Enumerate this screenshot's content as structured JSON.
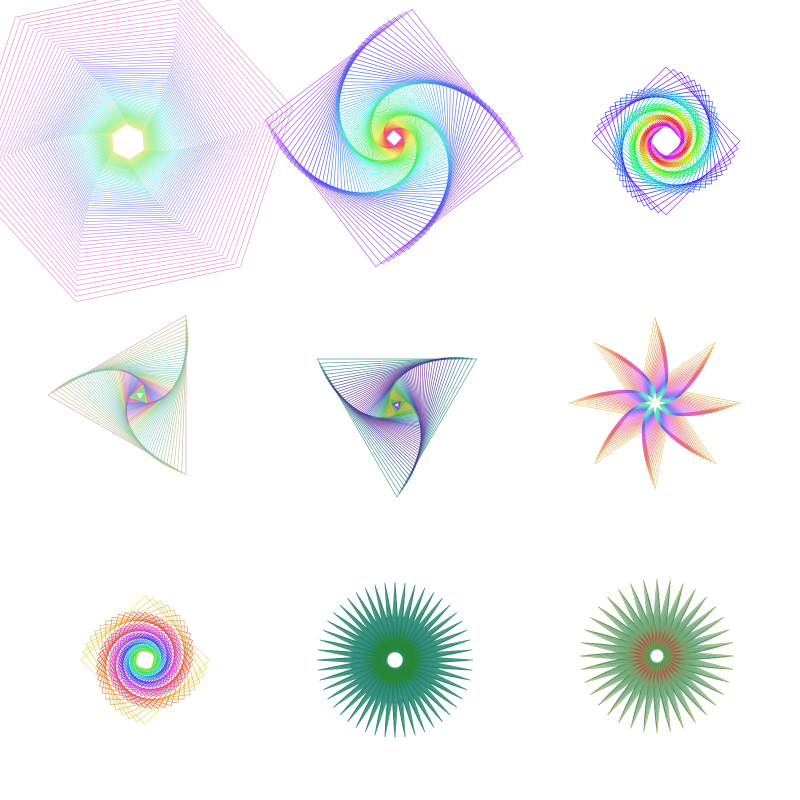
{
  "canvas": {
    "background": "#ffffff"
  },
  "figures": [
    {
      "id": "hexagon-swirl",
      "sides": 6,
      "layers": 70,
      "twist_deg": 0.55,
      "shrink": 0.968,
      "palette": "pastel-rainbow",
      "start_angle_deg": -12
    },
    {
      "id": "square-vortex",
      "sides": 4,
      "layers": 110,
      "twist_deg": -2.6,
      "shrink": 0.975,
      "palette": "rainbow-purple",
      "start_angle_deg": 8
    },
    {
      "id": "rainbow-spirograph",
      "sides": 4,
      "layers": 60,
      "twist_deg": 6.2,
      "shrink": 0.976,
      "palette": "rainbow-violet-outer",
      "start_angle_deg": 0
    },
    {
      "id": "taupe-triangle",
      "sides": 3,
      "layers": 80,
      "twist_deg": 1.9,
      "shrink": 0.962,
      "palette": "taupe-pastel",
      "start_angle_deg": 180
    },
    {
      "id": "teal-triangle",
      "sides": 3,
      "layers": 90,
      "twist_deg": -1.8,
      "shrink": 0.962,
      "palette": "teal-green-purple",
      "start_angle_deg": 90
    },
    {
      "id": "eight-point-star",
      "points": 8,
      "layers": 38,
      "twist_deg": 1.2,
      "shrink": 0.952,
      "palette": "gold-pink-blue"
    },
    {
      "id": "gold-rosette",
      "sides": 4,
      "layers": 70,
      "twist_deg": 7.5,
      "shrink": 0.976,
      "palette": "gold-rainbow"
    },
    {
      "id": "green-starburst",
      "points": 48,
      "layers": 24,
      "twist_deg": 0.3,
      "shrink": 0.93,
      "palette": "teal-green"
    },
    {
      "id": "olive-starburst",
      "points": 36,
      "layers": 26,
      "twist_deg": 0.5,
      "shrink": 0.93,
      "palette": "olive-pink"
    }
  ]
}
